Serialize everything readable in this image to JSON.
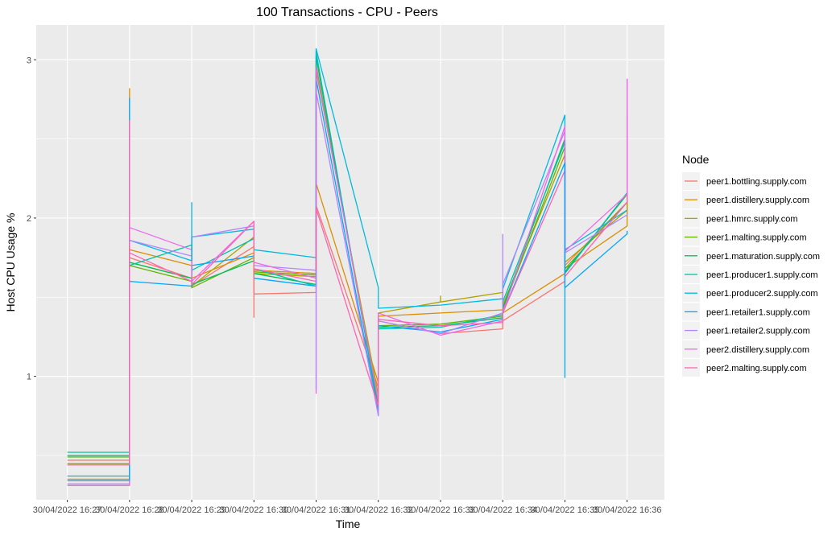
{
  "chart_data": {
    "type": "line",
    "title": "100 Transactions - CPU - Peers",
    "xlabel": "Time",
    "ylabel": "Host CPU Usage %",
    "legend_title": "Node",
    "legend_position": "right",
    "grid": true,
    "x_tick_labels": [
      "30/04/2022 16:27",
      "30/04/2022 16:28",
      "30/04/2022 16:29",
      "30/04/2022 16:30",
      "30/04/2022 16:31",
      "30/04/2022 16:32",
      "30/04/2022 16:33",
      "30/04/2022 16:34",
      "30/04/2022 16:35",
      "30/04/2022 16:36"
    ],
    "x_tick_positions": [
      0,
      1,
      2,
      3,
      4,
      5,
      6,
      7,
      8,
      9
    ],
    "xlim": [
      -0.5,
      9.6
    ],
    "y_ticks": [
      1,
      2,
      3
    ],
    "ylim": [
      0.22,
      3.22
    ],
    "x": [
      0,
      1,
      1,
      2,
      2,
      3,
      3,
      4,
      4,
      5,
      5,
      6,
      7,
      7,
      8,
      8,
      9,
      9
    ],
    "series": [
      {
        "name": "peer1.bottling.supply.com",
        "color": "#F8766D",
        "values": [
          0.47,
          0.47,
          1.75,
          1.62,
          1.57,
          1.82,
          1.52,
          1.53,
          2.08,
          0.93,
          1.35,
          1.27,
          1.3,
          1.35,
          1.6,
          1.7,
          2.1,
          2.12
        ]
      },
      {
        "name": "peer1.distillery.supply.com",
        "color": "#DB8E00",
        "values": [
          0.35,
          0.35,
          1.8,
          1.7,
          1.62,
          1.78,
          1.67,
          1.65,
          2.22,
          0.96,
          1.38,
          1.4,
          1.42,
          1.4,
          1.65,
          1.68,
          1.95,
          2.55
        ]
      },
      {
        "name": "peer1.hmrc.supply.com",
        "color": "#AEA200",
        "values": [
          0.45,
          0.45,
          1.72,
          1.62,
          1.57,
          1.88,
          1.65,
          1.63,
          2.93,
          0.88,
          1.4,
          1.47,
          1.53,
          1.45,
          2.4,
          1.72,
          2.05,
          2.15
        ]
      },
      {
        "name": "peer1.malting.supply.com",
        "color": "#64B200",
        "values": [
          0.49,
          0.49,
          1.7,
          1.6,
          1.56,
          1.75,
          1.66,
          1.64,
          2.97,
          0.82,
          1.32,
          1.33,
          1.38,
          1.42,
          2.45,
          1.68,
          2.1,
          2.12
        ]
      },
      {
        "name": "peer1.maturation.supply.com",
        "color": "#00BD5C",
        "values": [
          0.5,
          0.5,
          1.72,
          1.62,
          1.58,
          1.73,
          1.65,
          1.58,
          3.02,
          0.8,
          1.31,
          1.32,
          1.37,
          1.43,
          2.5,
          1.66,
          2.15,
          2.18
        ]
      },
      {
        "name": "peer1.producer1.supply.com",
        "color": "#00C1A7",
        "values": [
          0.52,
          0.52,
          1.7,
          1.83,
          1.67,
          1.87,
          1.68,
          1.57,
          3.05,
          0.78,
          1.3,
          1.31,
          1.39,
          1.47,
          2.48,
          1.65,
          2.16,
          2.2
        ]
      },
      {
        "name": "peer1.producer2.supply.com",
        "color": "#00BADE",
        "values": [
          0.37,
          0.37,
          1.86,
          1.73,
          1.88,
          1.93,
          1.8,
          1.75,
          3.07,
          1.56,
          1.43,
          1.45,
          1.49,
          1.55,
          2.65,
          1.8,
          2.05,
          2.05
        ]
      },
      {
        "name": "peer1.retailer1.supply.com",
        "color": "#00A6FF",
        "values": [
          0.34,
          0.34,
          1.6,
          1.57,
          1.7,
          1.76,
          1.62,
          1.57,
          2.88,
          0.76,
          1.32,
          1.28,
          1.36,
          1.4,
          2.35,
          1.56,
          1.9,
          1.92
        ]
      },
      {
        "name": "peer1.retailer2.supply.com",
        "color": "#B385FF",
        "values": [
          0.32,
          0.32,
          1.86,
          1.76,
          1.88,
          1.95,
          1.7,
          1.67,
          2.8,
          0.75,
          1.35,
          1.27,
          1.4,
          1.58,
          2.55,
          1.78,
          2.02,
          2.03
        ]
      },
      {
        "name": "peer2.distillery.supply.com",
        "color": "#EF67EB",
        "values": [
          0.31,
          0.31,
          1.94,
          1.8,
          1.6,
          1.98,
          1.72,
          1.62,
          2.95,
          0.84,
          1.4,
          1.26,
          1.35,
          1.4,
          2.58,
          1.79,
          2.15,
          2.88
        ]
      },
      {
        "name": "peer2.malting.supply.com",
        "color": "#FF63B6",
        "values": [
          0.44,
          0.44,
          1.78,
          1.6,
          1.58,
          1.98,
          1.68,
          1.6,
          2.06,
          0.81,
          1.36,
          1.32,
          1.34,
          1.4,
          2.3,
          1.63,
          2.1,
          2.65
        ]
      }
    ],
    "spikes": [
      {
        "x": 1,
        "series": "peer1.distillery.supply.com",
        "value": 2.82
      },
      {
        "x": 1,
        "series": "peer1.retailer1.supply.com",
        "value": 2.76
      },
      {
        "x": 1,
        "series": "peer2.malting.supply.com",
        "value": 2.62
      },
      {
        "x": 2,
        "series": "peer1.producer2.supply.com",
        "value": 2.1
      },
      {
        "x": 3,
        "series": "peer1.bottling.supply.com",
        "value": 1.37
      },
      {
        "x": 4,
        "series": "peer2.distillery.supply.com",
        "value": 0.89
      },
      {
        "x": 4,
        "series": "peer1.retailer2.supply.com",
        "value": 0.92
      },
      {
        "x": 6,
        "series": "peer1.hmrc.supply.com",
        "value": 1.51
      },
      {
        "x": 7,
        "series": "peer1.retailer2.supply.com",
        "value": 1.9
      },
      {
        "x": 8,
        "series": "peer1.retailer1.supply.com",
        "value": 0.99
      },
      {
        "x": 9,
        "series": "peer2.distillery.supply.com",
        "value": 2.88
      }
    ]
  }
}
